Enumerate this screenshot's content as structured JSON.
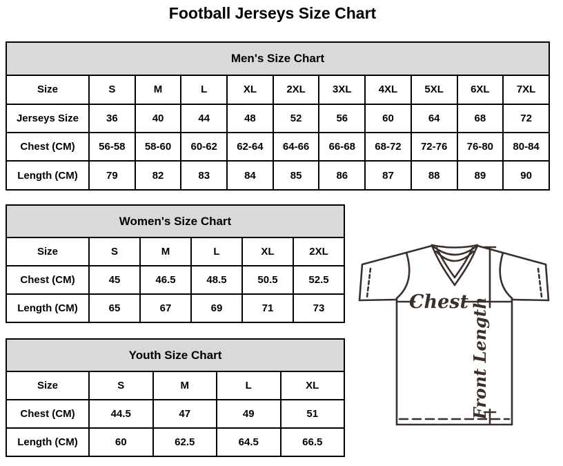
{
  "title": "Football Jerseys Size Chart",
  "chart_data": [
    {
      "type": "table",
      "title": "Men's Size Chart",
      "rows": [
        [
          "Size",
          "S",
          "M",
          "L",
          "XL",
          "2XL",
          "3XL",
          "4XL",
          "5XL",
          "6XL",
          "7XL"
        ],
        [
          "Jerseys Size",
          "36",
          "40",
          "44",
          "48",
          "52",
          "56",
          "60",
          "64",
          "68",
          "72"
        ],
        [
          "Chest (CM)",
          "56-58",
          "58-60",
          "60-62",
          "62-64",
          "64-66",
          "66-68",
          "68-72",
          "72-76",
          "76-80",
          "80-84"
        ],
        [
          "Length (CM)",
          "79",
          "82",
          "83",
          "84",
          "85",
          "86",
          "87",
          "88",
          "89",
          "90"
        ]
      ]
    },
    {
      "type": "table",
      "title": "Women's Size Chart",
      "rows": [
        [
          "Size",
          "S",
          "M",
          "L",
          "XL",
          "2XL"
        ],
        [
          "Chest (CM)",
          "45",
          "46.5",
          "48.5",
          "50.5",
          "52.5"
        ],
        [
          "Length (CM)",
          "65",
          "67",
          "69",
          "71",
          "73"
        ]
      ]
    },
    {
      "type": "table",
      "title": "Youth Size Chart",
      "rows": [
        [
          "Size",
          "S",
          "M",
          "L",
          "XL"
        ],
        [
          "Chest (CM)",
          "44.5",
          "47",
          "49",
          "51"
        ],
        [
          "Length (CM)",
          "60",
          "62.5",
          "64.5",
          "66.5"
        ]
      ]
    }
  ],
  "diagram": {
    "chest_label": "Chest",
    "front_length_label": "Front Length"
  },
  "colors": {
    "header_bg": "#d9d9d9",
    "table_border": "#000000",
    "text": "#000000",
    "diagram_stroke": "#3b2f2b"
  }
}
